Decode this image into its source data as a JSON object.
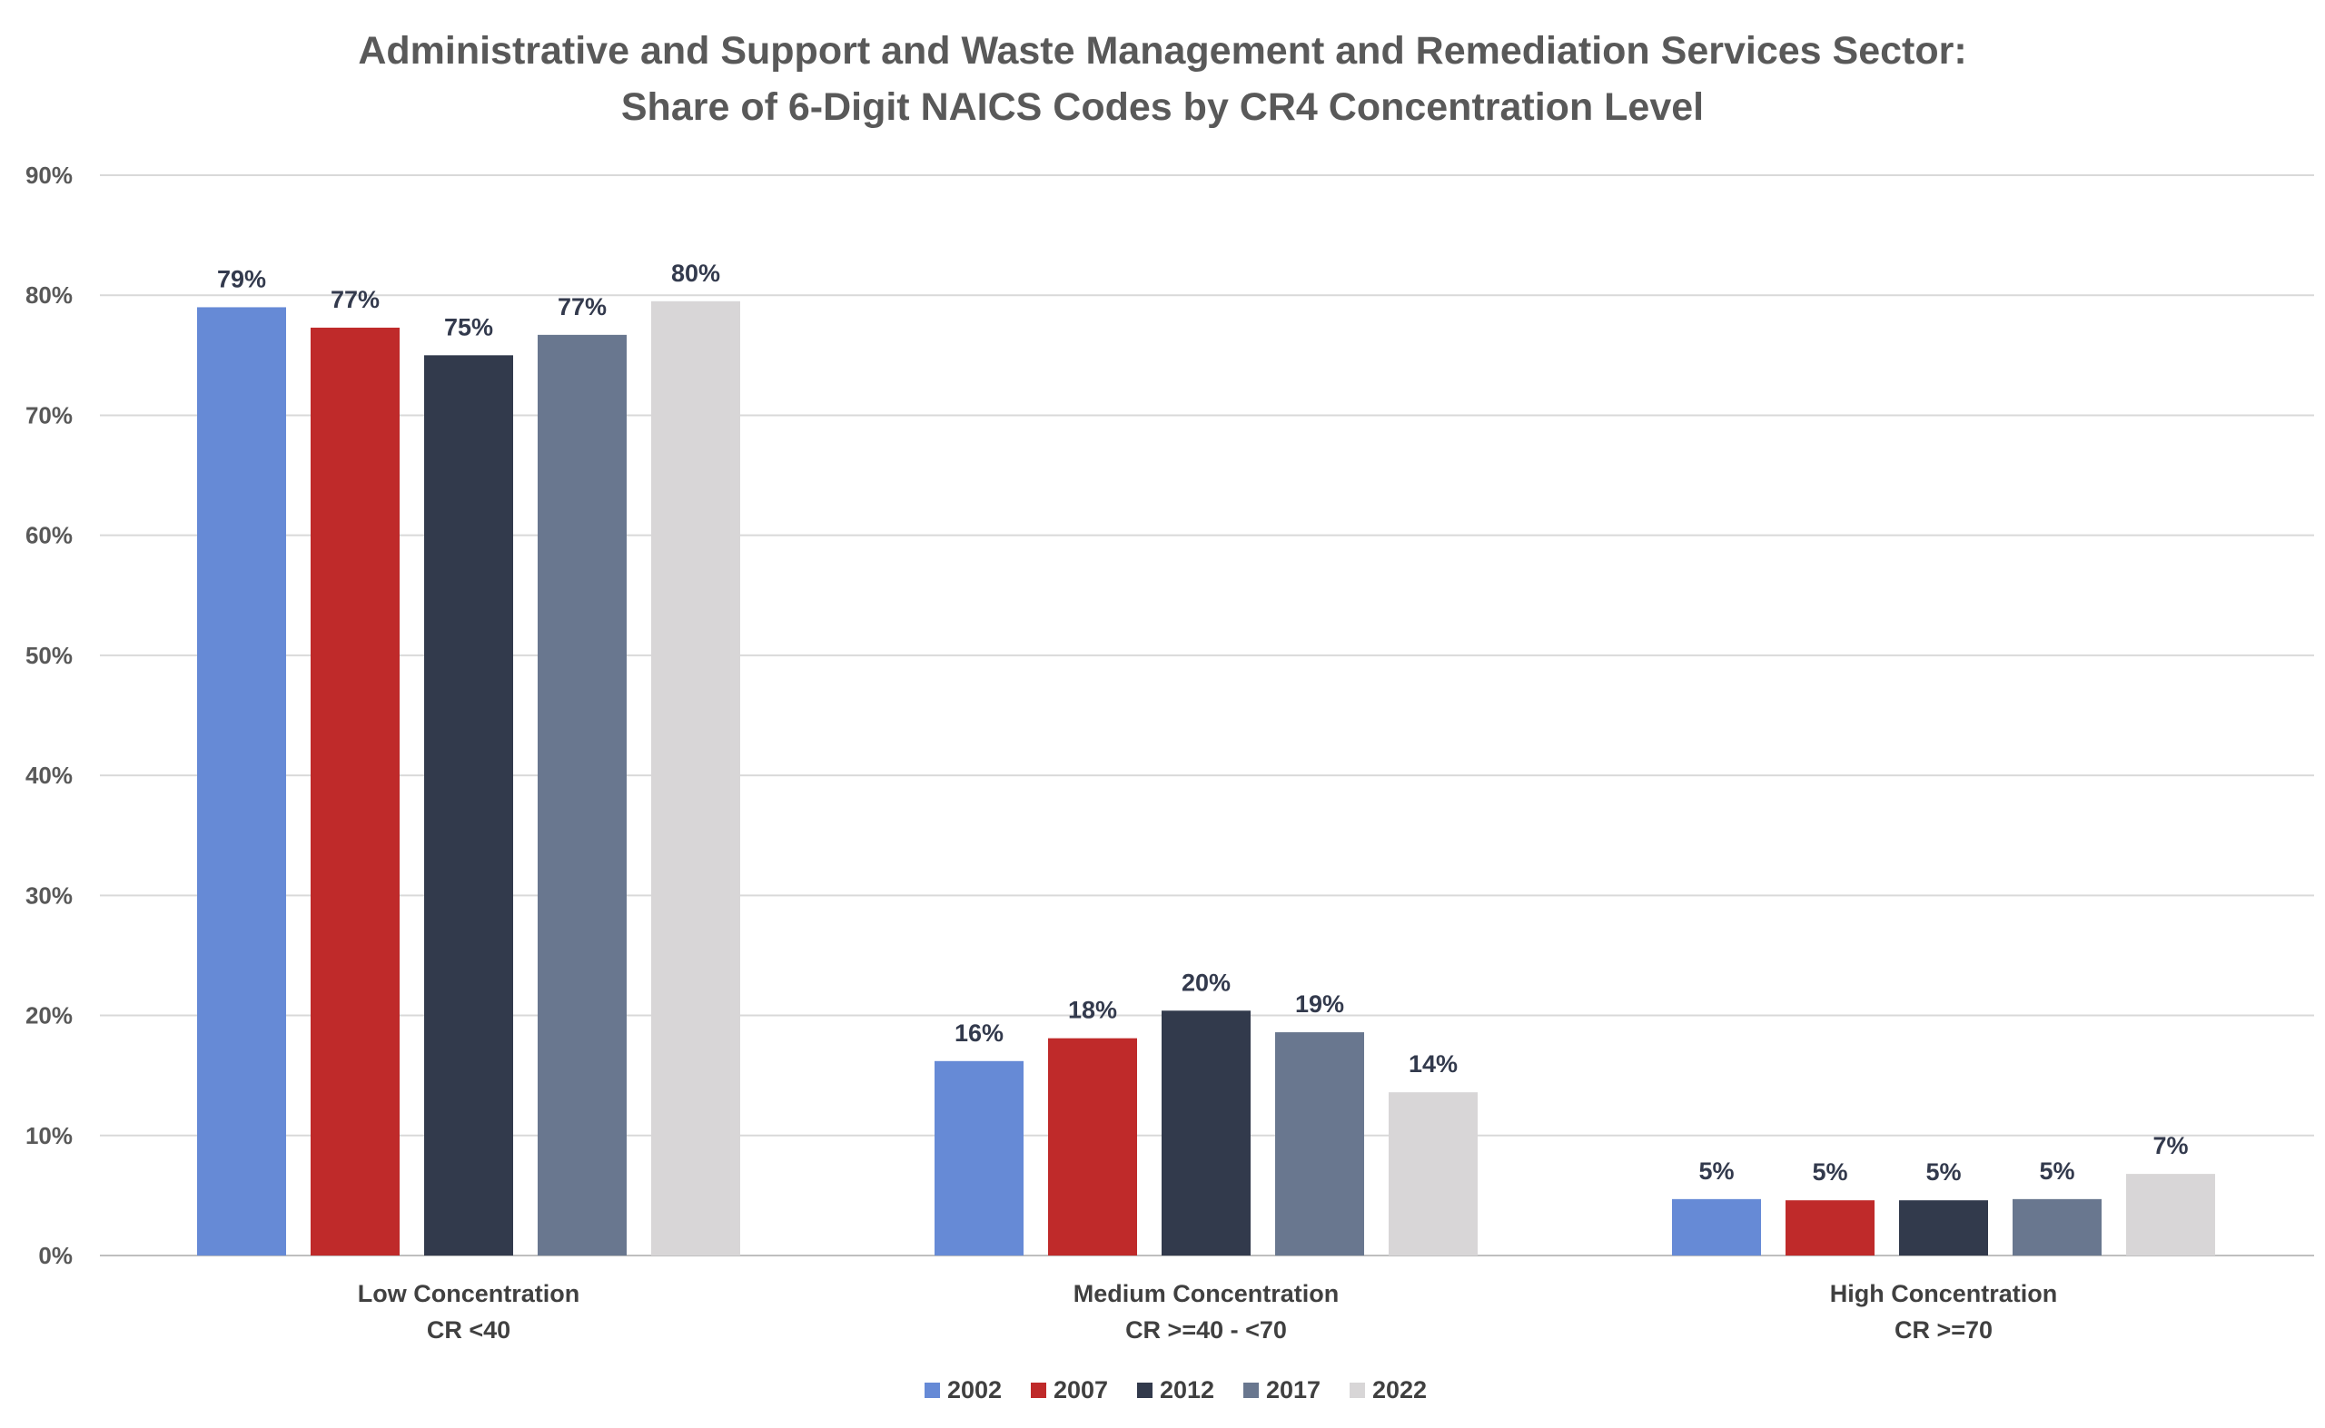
{
  "chart_data": {
    "type": "bar",
    "title": "Administrative and Support and Waste Management and Remediation Services Sector:",
    "subtitle": "Share of 6-Digit NAICS Codes by CR4 Concentration Level",
    "categories": [
      [
        "Low Concentration",
        "CR <40"
      ],
      [
        "Medium Concentration",
        "CR >=40 - <70"
      ],
      [
        "High Concentration",
        "CR >=70"
      ]
    ],
    "series": [
      {
        "name": "2002",
        "color": "#668ad6",
        "values": [
          79,
          16.2,
          4.7
        ],
        "labels": [
          "79%",
          "16%",
          "5%"
        ]
      },
      {
        "name": "2007",
        "color": "#bf2a2a",
        "values": [
          77.3,
          18.1,
          4.6
        ],
        "labels": [
          "77%",
          "18%",
          "5%"
        ]
      },
      {
        "name": "2012",
        "color": "#323a4c",
        "values": [
          75,
          20.4,
          4.6
        ],
        "labels": [
          "75%",
          "20%",
          "5%"
        ]
      },
      {
        "name": "2017",
        "color": "#69778f",
        "values": [
          76.7,
          18.6,
          4.7
        ],
        "labels": [
          "77%",
          "19%",
          "5%"
        ]
      },
      {
        "name": "2022",
        "color": "#d8d6d7",
        "values": [
          79.5,
          13.6,
          6.8
        ],
        "labels": [
          "80%",
          "14%",
          "7%"
        ]
      }
    ],
    "y_ticks": [
      "0%",
      "10%",
      "20%",
      "30%",
      "40%",
      "50%",
      "60%",
      "70%",
      "80%",
      "90%"
    ],
    "ylim": [
      0,
      90
    ],
    "xlabel": "",
    "ylabel": "",
    "grid": true,
    "legend_position": "bottom-center"
  }
}
